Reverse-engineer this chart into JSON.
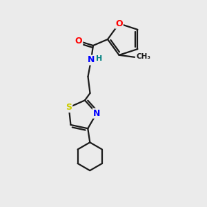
{
  "bg_color": "#ebebeb",
  "bond_color": "#1a1a1a",
  "atom_colors": {
    "O": "#ff0000",
    "N": "#0000ff",
    "S": "#cccc00",
    "H": "#008080",
    "C": "#1a1a1a"
  }
}
